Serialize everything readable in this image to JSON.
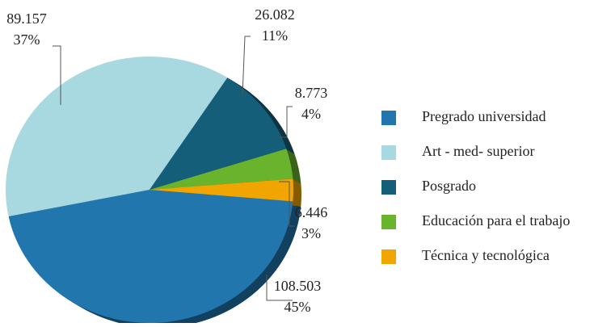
{
  "chart_data": {
    "type": "pie",
    "categories": [
      "Pregrado universidad",
      "Art - med- superior",
      "Posgrado",
      "Educación para el trabajo",
      "Técnica y tecnológica"
    ],
    "values": [
      108503,
      89157,
      26082,
      8773,
      6446
    ],
    "value_labels": [
      "108.503",
      "89.157",
      "26.082",
      "8.773",
      "6.446"
    ],
    "percent_labels": [
      "45%",
      "37%",
      "11%",
      "4%",
      "3%"
    ],
    "colors": [
      "#2176ae",
      "#a8d8e0",
      "#155e7a",
      "#6ab42d",
      "#f0a500"
    ],
    "legend": "right"
  }
}
